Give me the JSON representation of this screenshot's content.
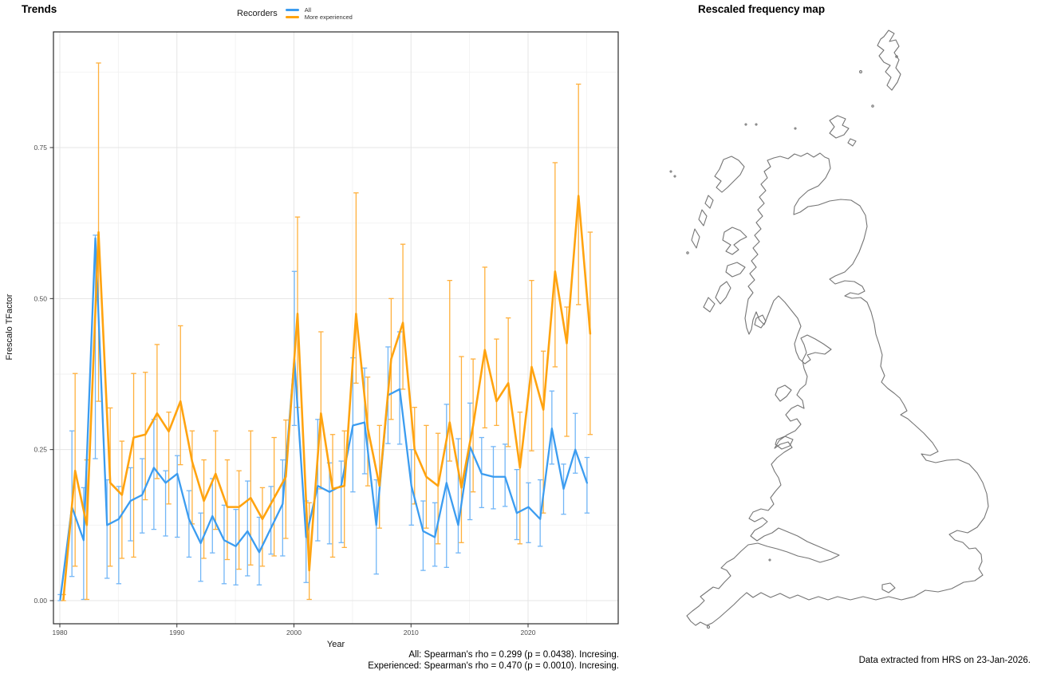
{
  "left_chart": {
    "title": "Trends",
    "legend": {
      "title": "Recorders",
      "items": [
        {
          "label": "All",
          "color": "#3B9CF0"
        },
        {
          "label": "More experienced",
          "color": "#FFA30F"
        }
      ]
    },
    "caption_lines": {
      "all": "All: Spearman's rho = 0.299 (p = 0.0438). Incresing.",
      "experienced": "Experienced: Spearman's rho = 0.470 (p = 0.0010). Incresing."
    },
    "chart_data": {
      "type": "line",
      "title": "Trends",
      "xlabel": "Year",
      "ylabel": "Frescalo TFactor",
      "legend_title": "Recorders",
      "legend_position": "top",
      "grid": true,
      "x_ticks": [
        1980,
        1990,
        2000,
        2010,
        2020
      ],
      "y_ticks": [
        "0.00",
        "0.25",
        "0.50",
        "0.75"
      ],
      "y_tick_values": [
        0.0,
        0.25,
        0.5,
        0.75
      ],
      "xlim": [
        1979.4,
        2027.7
      ],
      "ylim": [
        -0.04,
        0.94
      ],
      "years": [
        1980,
        1981,
        1982,
        1983,
        1984,
        1985,
        1986,
        1987,
        1988,
        1989,
        1990,
        1991,
        1992,
        1993,
        1994,
        1995,
        1996,
        1997,
        1998,
        1999,
        2000,
        2001,
        2002,
        2003,
        2004,
        2005,
        2006,
        2007,
        2008,
        2009,
        2010,
        2011,
        2012,
        2013,
        2014,
        2015,
        2016,
        2017,
        2018,
        2019,
        2020,
        2021,
        2022,
        2023,
        2024,
        2025
      ],
      "series": [
        {
          "name": "All",
          "color": "#3B9CF0",
          "errorbar_color": "#72B6F7",
          "values": [
            0.002,
            0.155,
            0.1,
            0.6,
            0.125,
            0.135,
            0.165,
            0.175,
            0.22,
            0.195,
            0.21,
            0.135,
            0.095,
            0.14,
            0.1,
            0.09,
            0.115,
            0.08,
            0.12,
            0.16,
            0.4,
            0.105,
            0.19,
            0.18,
            0.19,
            0.29,
            0.295,
            0.125,
            0.34,
            0.35,
            0.19,
            0.115,
            0.105,
            0.195,
            0.125,
            0.255,
            0.21,
            0.205,
            0.205,
            0.145,
            0.155,
            0.135,
            0.285,
            0.185,
            0.25,
            0.195
          ],
          "lower": [
            0.0,
            0.04,
            0.002,
            0.235,
            0.037,
            0.028,
            0.099,
            0.112,
            0.118,
            0.107,
            0.105,
            0.072,
            0.032,
            0.079,
            0.028,
            0.026,
            0.041,
            0.026,
            0.077,
            0.074,
            0.29,
            0.03,
            0.099,
            0.094,
            0.096,
            0.18,
            0.21,
            0.044,
            0.26,
            0.259,
            0.125,
            0.05,
            0.057,
            0.055,
            0.079,
            0.134,
            0.154,
            0.152,
            0.156,
            0.101,
            0.096,
            0.09,
            0.226,
            0.143,
            0.211,
            0.145
          ],
          "upper": [
            0.01,
            0.281,
            0.187,
            0.605,
            0.2,
            0.189,
            0.22,
            0.235,
            0.3,
            0.215,
            0.24,
            0.182,
            0.145,
            0.202,
            0.158,
            0.151,
            0.198,
            0.138,
            0.189,
            0.233,
            0.545,
            0.165,
            0.3,
            0.228,
            0.231,
            0.402,
            0.385,
            0.2,
            0.42,
            0.445,
            0.25,
            0.165,
            0.162,
            0.325,
            0.268,
            0.327,
            0.27,
            0.255,
            0.259,
            0.217,
            0.195,
            0.2,
            0.347,
            0.226,
            0.31,
            0.237
          ]
        },
        {
          "name": "More experienced",
          "color": "#FFA30F",
          "errorbar_color": "#FFB03C",
          "values": [
            0.002,
            0.215,
            0.125,
            0.61,
            0.195,
            0.175,
            0.27,
            0.275,
            0.31,
            0.28,
            0.33,
            0.23,
            0.165,
            0.21,
            0.155,
            0.155,
            0.17,
            0.135,
            0.17,
            0.205,
            0.475,
            0.05,
            0.31,
            0.185,
            0.19,
            0.475,
            0.285,
            0.19,
            0.4,
            0.46,
            0.25,
            0.205,
            0.19,
            0.295,
            0.187,
            0.29,
            0.415,
            0.33,
            0.36,
            0.22,
            0.387,
            0.316,
            0.545,
            0.426,
            0.67,
            0.442
          ],
          "lower": [
            0.0,
            0.057,
            0.002,
            0.33,
            0.057,
            0.07,
            0.072,
            0.167,
            0.202,
            0.16,
            0.225,
            0.127,
            0.07,
            0.118,
            0.068,
            0.052,
            0.059,
            0.057,
            0.074,
            0.103,
            0.32,
            0.002,
            0.185,
            0.072,
            0.088,
            0.36,
            0.19,
            0.12,
            0.3,
            0.35,
            0.16,
            0.12,
            0.094,
            0.231,
            0.096,
            0.18,
            0.286,
            0.29,
            0.255,
            0.094,
            0.248,
            0.145,
            0.387,
            0.272,
            0.49,
            0.275
          ],
          "upper": [
            0.01,
            0.376,
            0.233,
            0.89,
            0.319,
            0.264,
            0.376,
            0.378,
            0.424,
            0.312,
            0.455,
            0.281,
            0.233,
            0.281,
            0.233,
            0.215,
            0.281,
            0.187,
            0.27,
            0.299,
            0.635,
            0.162,
            0.445,
            0.275,
            0.281,
            0.675,
            0.37,
            0.29,
            0.5,
            0.59,
            0.32,
            0.29,
            0.277,
            0.53,
            0.404,
            0.4,
            0.552,
            0.433,
            0.468,
            0.312,
            0.53,
            0.413,
            0.725,
            0.486,
            0.855,
            0.61
          ]
        }
      ],
      "style": {
        "grid_major_color": "#E5E5E5",
        "grid_minor_color": "#F2F2F2",
        "panel_border_color": "#2B2B2B",
        "tick_label_color": "#4D4D4D"
      }
    }
  },
  "right_map": {
    "title": "Rescaled frequency map",
    "caption": "Data extracted from HRS on 23-Jan-2026.",
    "outline_color": "#757575",
    "region": "Great Britain"
  }
}
